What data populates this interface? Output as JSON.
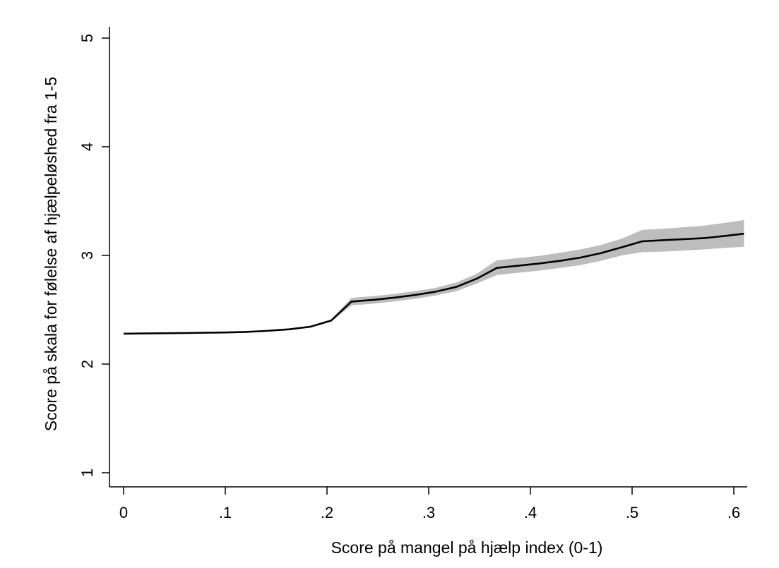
{
  "chart_data": {
    "type": "line",
    "title": "",
    "xlabel": "Score på mangel på hjælp index (0-1)",
    "ylabel": "Score på skala for følelse af hjælpeløshed fra 1-5",
    "xlim": [
      0,
      0.61
    ],
    "ylim": [
      1,
      5
    ],
    "xticks": [
      {
        "value": 0,
        "label": "0"
      },
      {
        "value": 0.1,
        "label": ".1"
      },
      {
        "value": 0.2,
        "label": ".2"
      },
      {
        "value": 0.3,
        "label": ".3"
      },
      {
        "value": 0.4,
        "label": ".4"
      },
      {
        "value": 0.5,
        "label": ".5"
      },
      {
        "value": 0.6,
        "label": ".6"
      }
    ],
    "yticks": [
      {
        "value": 1,
        "label": "1"
      },
      {
        "value": 2,
        "label": "2"
      },
      {
        "value": 3,
        "label": "3"
      },
      {
        "value": 4,
        "label": "4"
      },
      {
        "value": 5,
        "label": "5"
      }
    ],
    "grid": false,
    "legend": "none",
    "series": [
      {
        "x": [
          0,
          0.02,
          0.04,
          0.06,
          0.08,
          0.1,
          0.12,
          0.14,
          0.163,
          0.184,
          0.204,
          0.224,
          0.245,
          0.265,
          0.286,
          0.306,
          0.327,
          0.347,
          0.367,
          0.388,
          0.408,
          0.429,
          0.449,
          0.469,
          0.49,
          0.51,
          0.53,
          0.551,
          0.571,
          0.592,
          0.61
        ],
        "y": [
          2.28,
          2.282,
          2.284,
          2.286,
          2.288,
          2.291,
          2.296,
          2.305,
          2.32,
          2.345,
          2.4,
          2.575,
          2.59,
          2.61,
          2.635,
          2.665,
          2.71,
          2.785,
          2.885,
          2.905,
          2.925,
          2.95,
          2.98,
          3.02,
          3.075,
          3.13,
          3.14,
          3.15,
          3.16,
          3.18,
          3.2
        ],
        "ci_low": [
          2.275,
          2.277,
          2.279,
          2.281,
          2.283,
          2.286,
          2.291,
          2.3,
          2.314,
          2.338,
          2.39,
          2.54,
          2.555,
          2.575,
          2.6,
          2.63,
          2.67,
          2.74,
          2.82,
          2.84,
          2.86,
          2.885,
          2.91,
          2.95,
          3.0,
          3.03,
          3.035,
          3.045,
          3.055,
          3.07,
          3.08
        ],
        "ci_high": [
          2.285,
          2.287,
          2.289,
          2.291,
          2.293,
          2.296,
          2.301,
          2.31,
          2.326,
          2.352,
          2.41,
          2.61,
          2.625,
          2.645,
          2.67,
          2.7,
          2.75,
          2.83,
          2.955,
          2.975,
          2.995,
          3.025,
          3.055,
          3.095,
          3.155,
          3.235,
          3.245,
          3.26,
          3.275,
          3.3,
          3.325
        ],
        "color": "#000000",
        "ci_color": "#bdbdbd"
      }
    ]
  }
}
